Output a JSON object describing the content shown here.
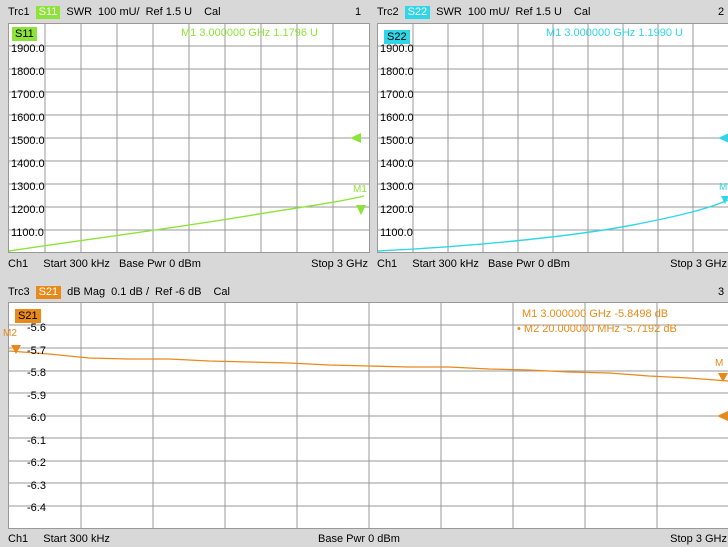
{
  "trc1": {
    "name": "Trc1",
    "badge": "S11",
    "format": "SWR",
    "scale": "100 mU/",
    "ref": "Ref 1.5 U",
    "cal": "Cal",
    "num": "1",
    "color": "#8ee33a",
    "tag": "S11",
    "marker": "M1  3.000000 GHz   1.1796 U",
    "ticks": [
      "1900.0",
      "1800.0",
      "1700.0",
      "1600.0",
      "1500.0",
      "1400.0",
      "1300.0",
      "1200.0",
      "1100.0"
    ],
    "mlabel": "M1"
  },
  "trc2": {
    "name": "Trc2",
    "badge": "S22",
    "format": "SWR",
    "scale": "100 mU/",
    "ref": "Ref 1.5 U",
    "cal": "Cal",
    "num": "2",
    "color": "#2fd6e8",
    "tag": "S22",
    "marker": "M1  3.000000 GHz   1.1990 U",
    "ticks": [
      "1900.0",
      "1800.0",
      "1700.0",
      "1600.0",
      "1500.0",
      "1400.0",
      "1300.0",
      "1200.0",
      "1100.0"
    ],
    "mlabel": "M"
  },
  "trc3": {
    "name": "Trc3",
    "badge": "S21",
    "format": "dB Mag",
    "scale": "0.1 dB /",
    "ref": "Ref -6 dB",
    "cal": "Cal",
    "num": "3",
    "color": "#e88a1a",
    "tag": "S21",
    "m1": "M1     3.000000 GHz   -5.8498 dB",
    "m2": "• M2   20.000000 MHz   -5.7192 dB",
    "ticks": [
      "-5.6",
      "-5.7",
      "-5.8",
      "-5.9",
      "-6.0",
      "-6.1",
      "-6.2",
      "-6.3",
      "-6.4"
    ],
    "mlabel1": "M",
    "mlabel2": "M2"
  },
  "foot1": {
    "ch": "Ch1",
    "start": "Start  300 kHz",
    "pwr": "Base Pwr  0 dBm",
    "stop": "Stop  3 GHz"
  },
  "foot2": {
    "ch": "Ch1",
    "start": "Start  300 kHz",
    "pwr": "Base Pwr  0 dBm",
    "stop": "Stop  3 GHz"
  },
  "foot3": {
    "ch": "Ch1",
    "start": "Start  300 kHz",
    "pwr": "Base Pwr  0 dBm",
    "stop": "Stop  3 GHz"
  }
}
